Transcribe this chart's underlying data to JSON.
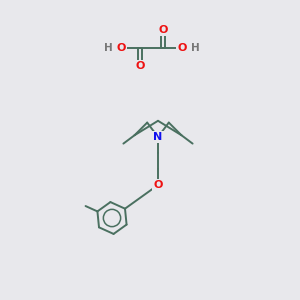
{
  "background_color": "#e8e8ec",
  "bond_color": "#4a7060",
  "atom_colors": {
    "O": "#ee1111",
    "N": "#1111ee",
    "H": "#777777",
    "C": "#4a7060"
  },
  "figsize": [
    3.0,
    3.0
  ],
  "dpi": 100
}
